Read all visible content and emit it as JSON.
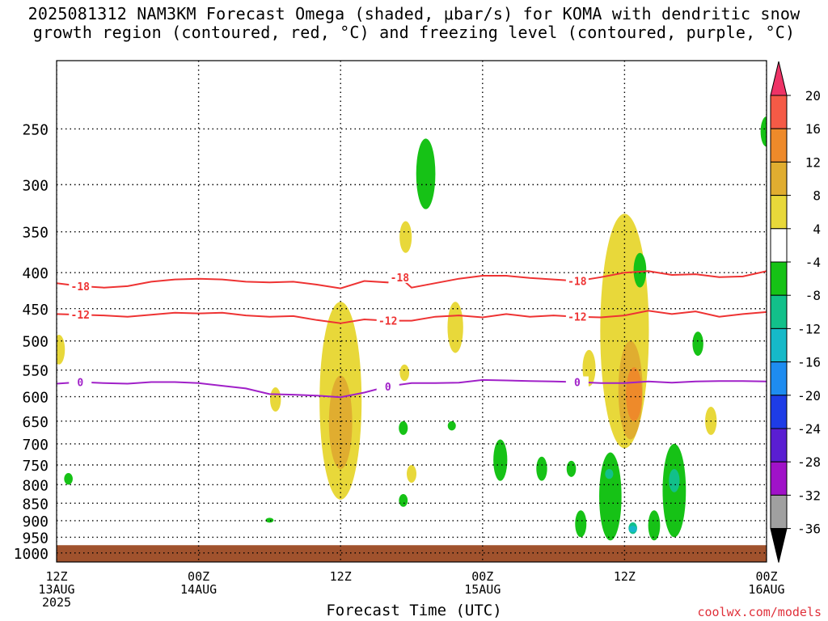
{
  "title": {
    "line1": "2025081312 NAM3KM Forecast Omega (shaded, μbar/s) for KOMA with dendritic snow",
    "line2": "growth region (contoured, red, °C) and freezing level (contoured, purple, °C)"
  },
  "credit": "coolwx.com/models",
  "chart_data": {
    "type": "heatmap",
    "title": "2025081312 NAM3KM Forecast Omega (shaded, μbar/s) for KOMA with dendritic snow growth region (contoured, red, °C) and freezing level (contoured, purple, °C)",
    "xlabel": "Forecast Time (UTC)",
    "ylabel": "",
    "x_ticks": [
      {
        "label1": "12Z",
        "label2": "13AUG",
        "label3": "2025",
        "hour": 0
      },
      {
        "label1": "00Z",
        "label2": "14AUG",
        "label3": "",
        "hour": 12
      },
      {
        "label1": "12Z",
        "label2": "",
        "label3": "",
        "hour": 24
      },
      {
        "label1": "00Z",
        "label2": "15AUG",
        "label3": "",
        "hour": 36
      },
      {
        "label1": "12Z",
        "label2": "",
        "label3": "",
        "hour": 48
      },
      {
        "label1": "00Z",
        "label2": "16AUG",
        "label3": "",
        "hour": 60
      }
    ],
    "xlim_hours": [
      0,
      60
    ],
    "y_ticks": [
      250,
      300,
      350,
      400,
      450,
      500,
      550,
      600,
      650,
      700,
      750,
      800,
      850,
      900,
      950,
      1000
    ],
    "ylim_mb": [
      200,
      1030
    ],
    "y_scale": "log-pressure",
    "grid": true,
    "colorbar": {
      "labels": [
        "20",
        "16",
        "12",
        "8",
        "4",
        "-4",
        "-8",
        "-12",
        "-16",
        "-20",
        "-24",
        "-28",
        "-32",
        "-36"
      ],
      "colors_top_to_bottom": [
        "#ee3366",
        "#f55a46",
        "#ee8a2a",
        "#e0ad30",
        "#e8d83a",
        "#ffffff",
        "#16c216",
        "#12c08a",
        "#16b9c8",
        "#1e8cf0",
        "#1e3ce6",
        "#5a1ed2",
        "#a012c8",
        "#a0a0a0",
        "#000000"
      ]
    },
    "contours": [
      {
        "name": "-18",
        "color": "#ee3333",
        "label": "-18",
        "points": [
          [
            0,
            414
          ],
          [
            2,
            418
          ],
          [
            4,
            420
          ],
          [
            6,
            418
          ],
          [
            8,
            412
          ],
          [
            10,
            409
          ],
          [
            12,
            408
          ],
          [
            14,
            409
          ],
          [
            16,
            412
          ],
          [
            18,
            413
          ],
          [
            20,
            412
          ],
          [
            22,
            416
          ],
          [
            24,
            421
          ],
          [
            26,
            411
          ],
          [
            28,
            413
          ],
          [
            29,
            406
          ],
          [
            30,
            420
          ],
          [
            32,
            414
          ],
          [
            34,
            408
          ],
          [
            36,
            404
          ],
          [
            38,
            404
          ],
          [
            40,
            407
          ],
          [
            42,
            409
          ],
          [
            44,
            411
          ],
          [
            46,
            406
          ],
          [
            48,
            400
          ],
          [
            50,
            398
          ],
          [
            52,
            403
          ],
          [
            54,
            402
          ],
          [
            56,
            406
          ],
          [
            58,
            405
          ],
          [
            60,
            398
          ]
        ]
      },
      {
        "name": "-12",
        "color": "#ee3333",
        "label": "-12",
        "points": [
          [
            0,
            458
          ],
          [
            2,
            459
          ],
          [
            4,
            460
          ],
          [
            6,
            462
          ],
          [
            8,
            459
          ],
          [
            10,
            456
          ],
          [
            12,
            457
          ],
          [
            14,
            456
          ],
          [
            16,
            460
          ],
          [
            18,
            462
          ],
          [
            20,
            461
          ],
          [
            22,
            467
          ],
          [
            24,
            472
          ],
          [
            26,
            466
          ],
          [
            28,
            468
          ],
          [
            30,
            468
          ],
          [
            32,
            462
          ],
          [
            34,
            460
          ],
          [
            36,
            463
          ],
          [
            38,
            458
          ],
          [
            40,
            462
          ],
          [
            42,
            460
          ],
          [
            44,
            462
          ],
          [
            46,
            463
          ],
          [
            48,
            460
          ],
          [
            50,
            453
          ],
          [
            52,
            458
          ],
          [
            54,
            454
          ],
          [
            56,
            462
          ],
          [
            58,
            458
          ],
          [
            60,
            455
          ]
        ]
      },
      {
        "name": "0",
        "color": "#a020c8",
        "label": "0",
        "points": [
          [
            0,
            575
          ],
          [
            2,
            572
          ],
          [
            4,
            574
          ],
          [
            6,
            575
          ],
          [
            8,
            572
          ],
          [
            10,
            572
          ],
          [
            12,
            574
          ],
          [
            14,
            579
          ],
          [
            16,
            584
          ],
          [
            18,
            595
          ],
          [
            20,
            596
          ],
          [
            22,
            598
          ],
          [
            24,
            601
          ],
          [
            26,
            592
          ],
          [
            28,
            580
          ],
          [
            30,
            574
          ],
          [
            32,
            574
          ],
          [
            34,
            573
          ],
          [
            36,
            568
          ],
          [
            38,
            569
          ],
          [
            40,
            570
          ],
          [
            42,
            571
          ],
          [
            44,
            572
          ],
          [
            46,
            574
          ],
          [
            48,
            574
          ],
          [
            50,
            571
          ],
          [
            52,
            573
          ],
          [
            54,
            571
          ],
          [
            56,
            570
          ],
          [
            58,
            570
          ],
          [
            60,
            571
          ]
        ]
      }
    ],
    "shaded_regions": [
      {
        "value": 4,
        "color": "#e8d83a",
        "hour_center": 0.2,
        "p_top": 490,
        "p_bot": 540
      },
      {
        "value": 4,
        "color": "#e8d83a",
        "hour_center": 18.5,
        "p_top": 582,
        "p_bot": 630
      },
      {
        "value": 4,
        "color": "#e8d83a",
        "hour_center": 24,
        "p_top": 440,
        "p_bot": 840
      },
      {
        "value": 8,
        "color": "#e0ad30",
        "hour_center": 24,
        "p_top": 560,
        "p_bot": 760
      },
      {
        "value": 4,
        "color": "#e8d83a",
        "hour_center": 29.5,
        "p_top": 338,
        "p_bot": 375
      },
      {
        "value": 4,
        "color": "#e8d83a",
        "hour_center": 29.4,
        "p_top": 540,
        "p_bot": 570
      },
      {
        "value": 4,
        "color": "#e8d83a",
        "hour_center": 30,
        "p_top": 750,
        "p_bot": 795
      },
      {
        "value": 4,
        "color": "#e8d83a",
        "hour_center": 33.7,
        "p_top": 440,
        "p_bot": 520
      },
      {
        "value": 4,
        "color": "#e8d83a",
        "hour_center": 45,
        "p_top": 515,
        "p_bot": 580
      },
      {
        "value": 4,
        "color": "#e8d83a",
        "hour_center": 48,
        "p_top": 330,
        "p_bot": 710
      },
      {
        "value": 8,
        "color": "#e0ad30",
        "hour_center": 48.5,
        "p_top": 500,
        "p_bot": 690
      },
      {
        "value": 12,
        "color": "#ee8a2a",
        "hour_center": 48.8,
        "p_top": 545,
        "p_bot": 650
      },
      {
        "value": 4,
        "color": "#e8d83a",
        "hour_center": 55.3,
        "p_top": 620,
        "p_bot": 680
      },
      {
        "value": -4,
        "color": "#16c216",
        "hour_center": 31.2,
        "p_top": 258,
        "p_bot": 325
      },
      {
        "value": -4,
        "color": "#16c216",
        "hour_center": 29.3,
        "p_top": 650,
        "p_bot": 680
      },
      {
        "value": -4,
        "color": "#16c216",
        "hour_center": 29.3,
        "p_top": 825,
        "p_bot": 860
      },
      {
        "value": -4,
        "color": "#16c216",
        "hour_center": 33.4,
        "p_top": 650,
        "p_bot": 670
      },
      {
        "value": -4,
        "color": "#16c216",
        "hour_center": 1,
        "p_top": 770,
        "p_bot": 800
      },
      {
        "value": -4,
        "color": "#16c216",
        "hour_center": 18,
        "p_top": 892,
        "p_bot": 905
      },
      {
        "value": -4,
        "color": "#16c216",
        "hour_center": 49.3,
        "p_top": 375,
        "p_bot": 420
      },
      {
        "value": -4,
        "color": "#16c216",
        "hour_center": 54.2,
        "p_top": 485,
        "p_bot": 525
      },
      {
        "value": -4,
        "color": "#16c216",
        "hour_center": 60,
        "p_top": 240,
        "p_bot": 265
      },
      {
        "value": -4,
        "color": "#16c216",
        "hour_center": 37.5,
        "p_top": 690,
        "p_bot": 790
      },
      {
        "value": -4,
        "color": "#16c216",
        "hour_center": 41,
        "p_top": 730,
        "p_bot": 790
      },
      {
        "value": -4,
        "color": "#16c216",
        "hour_center": 43.5,
        "p_top": 740,
        "p_bot": 780
      },
      {
        "value": -4,
        "color": "#16c216",
        "hour_center": 44.3,
        "p_top": 870,
        "p_bot": 950
      },
      {
        "value": -4,
        "color": "#16c216",
        "hour_center": 46.8,
        "p_top": 720,
        "p_bot": 960
      },
      {
        "value": -4,
        "color": "#16c216",
        "hour_center": 50.5,
        "p_top": 870,
        "p_bot": 960
      },
      {
        "value": -4,
        "color": "#16c216",
        "hour_center": 52.2,
        "p_top": 700,
        "p_bot": 950
      },
      {
        "value": -8,
        "color": "#12c08a",
        "hour_center": 48.7,
        "p_top": 905,
        "p_bot": 940
      },
      {
        "value": -12,
        "color": "#16b9c8",
        "hour_center": 48.7,
        "p_top": 915,
        "p_bot": 935
      },
      {
        "value": -8,
        "color": "#12c08a",
        "hour_center": 52.2,
        "p_top": 760,
        "p_bot": 820
      },
      {
        "value": -8,
        "color": "#12c08a",
        "hour_center": 46.7,
        "p_top": 760,
        "p_bot": 785
      }
    ],
    "terrain": {
      "color": "#a0522d",
      "surface_pressure_mb": 975
    }
  }
}
